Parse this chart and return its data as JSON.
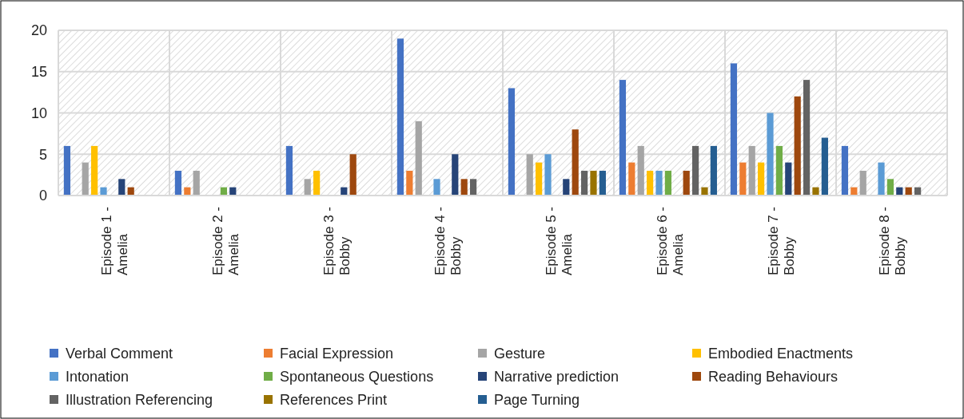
{
  "chart_data": {
    "type": "bar",
    "categories": [
      "Episode 1 - Amelia",
      "Episode 2 - Amelia",
      "Episode 3 - Bobby",
      "Episode 4 - Bobby",
      "Episode 5 - Amelia",
      "Episode 6 - Amelia",
      "Episode 7 - Bobby",
      "Episode 8 - Bobby"
    ],
    "series": [
      {
        "name": "Verbal Comment",
        "color": "#4472c4",
        "values": [
          6,
          3,
          6,
          19,
          13,
          14,
          16,
          6
        ]
      },
      {
        "name": "Facial Expression",
        "color": "#ed7d31",
        "values": [
          0,
          1,
          0,
          3,
          0,
          4,
          4,
          1
        ]
      },
      {
        "name": "Gesture",
        "color": "#a5a5a5",
        "values": [
          4,
          3,
          2,
          9,
          5,
          6,
          6,
          3
        ]
      },
      {
        "name": "Embodied Enactments",
        "color": "#ffc000",
        "values": [
          6,
          0,
          3,
          0,
          4,
          3,
          4,
          0
        ]
      },
      {
        "name": "Intonation",
        "color": "#5b9bd5",
        "values": [
          1,
          0,
          0,
          2,
          5,
          3,
          10,
          4
        ]
      },
      {
        "name": "Spontaneous Questions",
        "color": "#70ad47",
        "values": [
          0,
          1,
          0,
          0,
          0,
          3,
          6,
          2
        ]
      },
      {
        "name": "Narrative prediction",
        "color": "#264478",
        "values": [
          2,
          1,
          1,
          5,
          2,
          0,
          4,
          1
        ]
      },
      {
        "name": "Reading Behaviours",
        "color": "#9e480e",
        "values": [
          1,
          0,
          5,
          2,
          8,
          3,
          12,
          1
        ]
      },
      {
        "name": "Illustration Referencing",
        "color": "#636363",
        "values": [
          0,
          0,
          0,
          2,
          3,
          6,
          14,
          1
        ]
      },
      {
        "name": "References Print",
        "color": "#997300",
        "values": [
          0,
          0,
          0,
          0,
          3,
          1,
          1,
          0
        ]
      },
      {
        "name": "Page Turning",
        "color": "#255e91",
        "values": [
          0,
          0,
          0,
          0,
          3,
          6,
          7,
          0
        ]
      }
    ],
    "ylim": [
      0,
      20
    ],
    "yticks": [
      0,
      5,
      10,
      15,
      20
    ],
    "grid": true,
    "legend": "bottom"
  }
}
